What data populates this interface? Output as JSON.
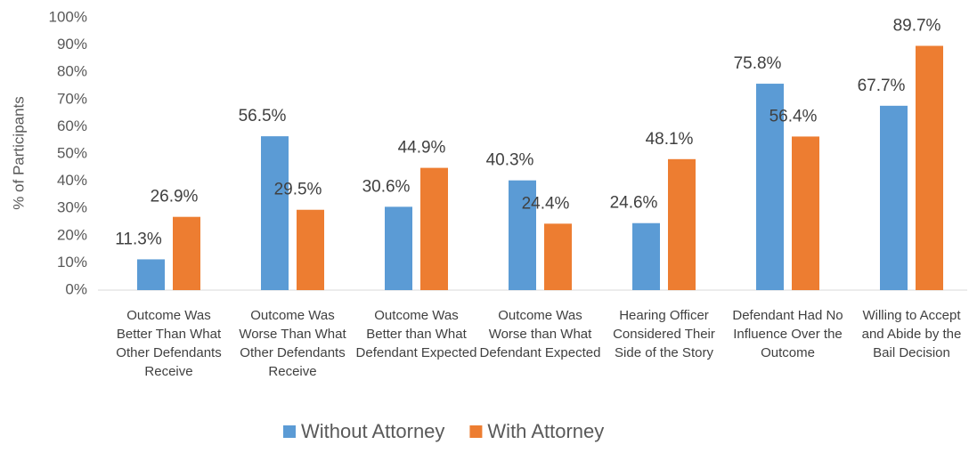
{
  "chart_data": {
    "type": "bar",
    "y_label": "% of Participants",
    "categories": [
      "Outcome Was Better Than What Other Defendants Receive",
      "Outcome Was Worse Than What Other Defendants Receive",
      "Outcome Was Better than What Defendant Expected",
      "Outcome Was Worse than What Defendant Expected",
      "Hearing Officer Considered Their Side of the Story",
      "Defendant Had No Influence Over the Outcome",
      "Willing to Accept and Abide by the Bail Decision"
    ],
    "series": [
      {
        "name": "Without Attorney",
        "color": "#5b9bd5",
        "values": [
          11.3,
          56.5,
          30.6,
          40.3,
          24.6,
          75.8,
          67.7
        ],
        "value_labels": [
          "11.3%",
          "56.5%",
          "30.6%",
          "40.3%",
          "24.6%",
          "75.8%",
          "67.7%"
        ]
      },
      {
        "name": "With Attorney",
        "color": "#ed7d31",
        "values": [
          26.9,
          29.5,
          44.9,
          24.4,
          48.1,
          56.4,
          89.7
        ],
        "value_labels": [
          "26.9%",
          "29.5%",
          "44.9%",
          "24.4%",
          "48.1%",
          "56.4%",
          "89.7%"
        ]
      }
    ],
    "ylim": [
      0,
      100
    ],
    "yticks": [
      {
        "value": 0,
        "label": "0%"
      },
      {
        "value": 10,
        "label": "10%"
      },
      {
        "value": 20,
        "label": "20%"
      },
      {
        "value": 30,
        "label": "30%"
      },
      {
        "value": 40,
        "label": "40%"
      },
      {
        "value": 50,
        "label": "50%"
      },
      {
        "value": 60,
        "label": "60%"
      },
      {
        "value": 70,
        "label": "70%"
      },
      {
        "value": 80,
        "label": "80%"
      },
      {
        "value": 90,
        "label": "90%"
      },
      {
        "value": 100,
        "label": "100%"
      }
    ],
    "legend": "bottom"
  }
}
